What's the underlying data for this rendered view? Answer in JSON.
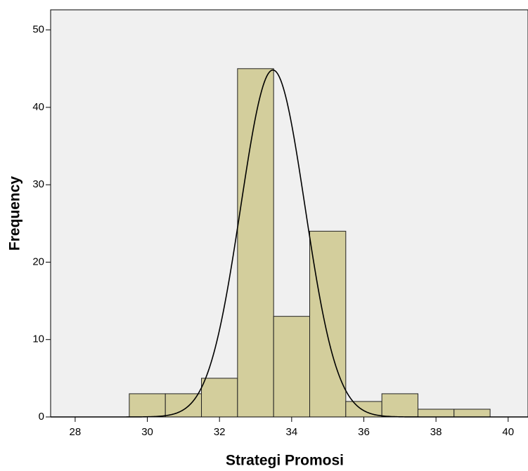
{
  "chart_data": {
    "type": "histogram",
    "x_label": "Strategi Promosi",
    "y_label": "Frequency",
    "bins": [
      29.5,
      30.5,
      31.5,
      32.5,
      33.5,
      34.5,
      35.5,
      36.5,
      37.5,
      38.5,
      39.5
    ],
    "values": [
      3,
      3,
      5,
      45,
      13,
      24,
      2,
      3,
      1,
      1
    ],
    "color": "#d3ce9c",
    "curve": {
      "mean": 33.48,
      "std": 0.89
    },
    "xlim": [
      27.32,
      40.55
    ],
    "xticks": [
      28,
      30,
      32,
      34,
      36,
      38,
      40
    ],
    "ylim": [
      0,
      52.6
    ],
    "yticks": [
      0,
      10,
      20,
      30,
      40,
      50
    ]
  }
}
